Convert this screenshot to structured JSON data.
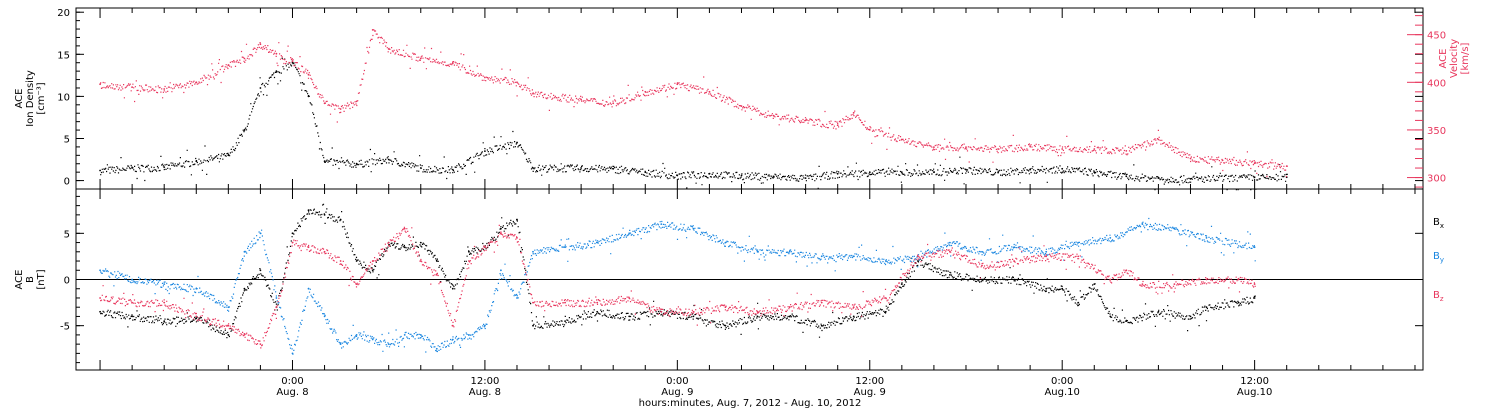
{
  "chart_data": [
    {
      "type": "scatter",
      "panel": "top",
      "left_axis": {
        "label_lines": [
          "ACE",
          "Ion Density",
          "[cm⁻³]"
        ],
        "ticks": [
          0,
          5,
          10,
          15,
          20
        ],
        "ylim": [
          -1,
          20.5
        ],
        "color": "#000000"
      },
      "right_axis": {
        "label_lines": [
          "ACE",
          "Velocity",
          "[km/s]"
        ],
        "ticks": [
          300,
          350,
          400,
          450
        ],
        "ylim": [
          288,
          478
        ],
        "color": "#e8365d"
      },
      "series": [
        {
          "axis": "left",
          "color": "#000000",
          "points": [
            [
              -12,
              1.2
            ],
            [
              -10,
              1.5
            ],
            [
              -8,
              1.6
            ],
            [
              -6,
              2.3
            ],
            [
              -4,
              3
            ],
            [
              -3,
              6
            ],
            [
              -2,
              11
            ],
            [
              -1,
              13
            ],
            [
              0,
              14
            ],
            [
              1,
              10
            ],
            [
              2,
              2.3
            ],
            [
              4,
              2
            ],
            [
              6,
              2.5
            ],
            [
              8,
              1.5
            ],
            [
              10,
              1.3
            ],
            [
              12,
              3.5
            ],
            [
              14,
              4.5
            ],
            [
              15,
              1.5
            ],
            [
              18,
              1.5
            ],
            [
              20,
              1.4
            ],
            [
              22,
              1
            ],
            [
              24,
              0.6
            ],
            [
              26,
              0.8
            ],
            [
              28,
              0.6
            ],
            [
              30,
              0.5
            ],
            [
              32,
              0.3
            ],
            [
              34,
              0.8
            ],
            [
              36,
              1
            ],
            [
              38,
              1
            ],
            [
              40,
              1
            ],
            [
              42,
              1.3
            ],
            [
              44,
              1
            ],
            [
              46,
              1.3
            ],
            [
              48,
              1.4
            ],
            [
              50,
              1
            ],
            [
              52,
              0.5
            ],
            [
              54,
              0.3
            ],
            [
              56,
              0.2
            ],
            [
              60,
              0.4
            ],
            [
              62,
              0.4
            ]
          ]
        },
        {
          "axis": "right",
          "color": "#e8365d",
          "points": [
            [
              -12,
              398
            ],
            [
              -10,
              395
            ],
            [
              -8,
              393
            ],
            [
              -6,
              400
            ],
            [
              -4,
              418
            ],
            [
              -3,
              425
            ],
            [
              -2,
              440
            ],
            [
              -1,
              430
            ],
            [
              0,
              422
            ],
            [
              1,
              408
            ],
            [
              2,
              378
            ],
            [
              3,
              372
            ],
            [
              4,
              380
            ],
            [
              5,
              455
            ],
            [
              6,
              435
            ],
            [
              8,
              425
            ],
            [
              10,
              420
            ],
            [
              12,
              405
            ],
            [
              14,
              400
            ],
            [
              15,
              388
            ],
            [
              18,
              382
            ],
            [
              20,
              378
            ],
            [
              22,
              390
            ],
            [
              24,
              398
            ],
            [
              26,
              390
            ],
            [
              28,
              375
            ],
            [
              30,
              365
            ],
            [
              32,
              360
            ],
            [
              34,
              355
            ],
            [
              35,
              368
            ],
            [
              36,
              350
            ],
            [
              38,
              340
            ],
            [
              40,
              332
            ],
            [
              42,
              332
            ],
            [
              44,
              330
            ],
            [
              46,
              333
            ],
            [
              48,
              330
            ],
            [
              50,
              330
            ],
            [
              52,
              328
            ],
            [
              54,
              340
            ],
            [
              56,
              320
            ],
            [
              58,
              318
            ],
            [
              60,
              315
            ],
            [
              62,
              312
            ]
          ]
        }
      ]
    },
    {
      "type": "scatter",
      "panel": "bottom",
      "left_axis": {
        "label_lines": [
          "ACE",
          "B",
          "[nT]"
        ],
        "ticks": [
          -5,
          0,
          5
        ],
        "ylim": [
          -9.8,
          9.8
        ]
      },
      "zero_line": true,
      "series": [
        {
          "name": "Bx",
          "label": "B",
          "subscript": "x",
          "color": "#000000",
          "points": [
            [
              -12,
              -3.5
            ],
            [
              -10,
              -4
            ],
            [
              -8,
              -4.5
            ],
            [
              -6,
              -4.2
            ],
            [
              -4,
              -6
            ],
            [
              -3,
              -1
            ],
            [
              -2,
              1
            ],
            [
              -1,
              -3
            ],
            [
              0,
              5
            ],
            [
              1,
              7.5
            ],
            [
              2,
              7
            ],
            [
              3,
              6.5
            ],
            [
              4,
              2
            ],
            [
              5,
              1
            ],
            [
              6,
              4
            ],
            [
              7,
              3.5
            ],
            [
              8,
              4
            ],
            [
              9,
              2
            ],
            [
              10,
              -1
            ],
            [
              11,
              3
            ],
            [
              12,
              3.5
            ],
            [
              13,
              5.5
            ],
            [
              14,
              6.5
            ],
            [
              15,
              -5
            ],
            [
              17,
              -4.5
            ],
            [
              19,
              -3.5
            ],
            [
              21,
              -4
            ],
            [
              23,
              -3.5
            ],
            [
              25,
              -4
            ],
            [
              27,
              -5
            ],
            [
              29,
              -4
            ],
            [
              31,
              -4
            ],
            [
              33,
              -5
            ],
            [
              35,
              -4
            ],
            [
              37,
              -3.5
            ],
            [
              38,
              -0.5
            ],
            [
              39,
              2
            ],
            [
              41,
              0.5
            ],
            [
              43,
              0
            ],
            [
              45,
              0
            ],
            [
              47,
              -1
            ],
            [
              48,
              -1
            ],
            [
              49,
              -2.5
            ],
            [
              50,
              -0.5
            ],
            [
              51,
              -4
            ],
            [
              52,
              -4.5
            ],
            [
              54,
              -3.5
            ],
            [
              56,
              -4
            ],
            [
              57,
              -3
            ],
            [
              59,
              -2.5
            ],
            [
              60,
              -2
            ]
          ]
        },
        {
          "name": "By",
          "label": "B",
          "subscript": "y",
          "color": "#1a86e0",
          "points": [
            [
              -12,
              1
            ],
            [
              -10,
              0
            ],
            [
              -8,
              -0.5
            ],
            [
              -6,
              -1
            ],
            [
              -4,
              -3
            ],
            [
              -3,
              3
            ],
            [
              -2,
              5
            ],
            [
              -1,
              -2
            ],
            [
              0,
              -8
            ],
            [
              1,
              -1
            ],
            [
              2,
              -4
            ],
            [
              3,
              -7
            ],
            [
              4,
              -6
            ],
            [
              5,
              -6.5
            ],
            [
              6,
              -7
            ],
            [
              7,
              -6
            ],
            [
              8,
              -6
            ],
            [
              9,
              -7.5
            ],
            [
              10,
              -6.5
            ],
            [
              11,
              -6
            ],
            [
              12,
              -5
            ],
            [
              13,
              1
            ],
            [
              14,
              -2
            ],
            [
              15,
              3
            ],
            [
              17,
              3.5
            ],
            [
              19,
              4
            ],
            [
              21,
              5
            ],
            [
              23,
              6
            ],
            [
              25,
              5.5
            ],
            [
              27,
              4
            ],
            [
              29,
              3
            ],
            [
              31,
              3
            ],
            [
              33,
              2.5
            ],
            [
              35,
              2.5
            ],
            [
              37,
              2
            ],
            [
              39,
              2.5
            ],
            [
              41,
              4
            ],
            [
              43,
              3
            ],
            [
              45,
              3.5
            ],
            [
              47,
              3
            ],
            [
              49,
              4
            ],
            [
              51,
              4.5
            ],
            [
              53,
              6
            ],
            [
              55,
              5.5
            ],
            [
              57,
              4.5
            ],
            [
              60,
              3.5
            ]
          ]
        },
        {
          "name": "Bz",
          "label": "B",
          "subscript": "z",
          "color": "#e8365d",
          "points": [
            [
              -12,
              -2
            ],
            [
              -10,
              -2.5
            ],
            [
              -8,
              -2.5
            ],
            [
              -6,
              -4
            ],
            [
              -4,
              -5
            ],
            [
              -3,
              -6
            ],
            [
              -2,
              -7
            ],
            [
              -1,
              -3
            ],
            [
              0,
              4
            ],
            [
              1,
              3.5
            ],
            [
              2,
              3
            ],
            [
              3,
              2
            ],
            [
              4,
              -0.5
            ],
            [
              5,
              2
            ],
            [
              6,
              4
            ],
            [
              7,
              5.5
            ],
            [
              8,
              2
            ],
            [
              9,
              0.5
            ],
            [
              10,
              -5
            ],
            [
              11,
              2
            ],
            [
              12,
              3.5
            ],
            [
              13,
              5
            ],
            [
              14,
              4.5
            ],
            [
              15,
              -2.5
            ],
            [
              17,
              -2.5
            ],
            [
              19,
              -2.5
            ],
            [
              21,
              -2
            ],
            [
              23,
              -3.5
            ],
            [
              25,
              -3.5
            ],
            [
              27,
              -3
            ],
            [
              29,
              -3.5
            ],
            [
              31,
              -3
            ],
            [
              33,
              -2.5
            ],
            [
              35,
              -3
            ],
            [
              37,
              -2
            ],
            [
              39,
              2.5
            ],
            [
              41,
              3
            ],
            [
              43,
              1.5
            ],
            [
              45,
              2
            ],
            [
              47,
              2.5
            ],
            [
              49,
              2.5
            ],
            [
              51,
              0
            ],
            [
              52,
              1
            ],
            [
              53,
              -0.5
            ],
            [
              55,
              -0.5
            ],
            [
              57,
              0
            ],
            [
              59,
              0
            ],
            [
              60,
              -0.5
            ]
          ]
        }
      ]
    }
  ],
  "x_axis": {
    "range_hours": [
      -13.5,
      70.5
    ],
    "major_ticks": [
      {
        "h": 0,
        "time": "0:00",
        "date": "Aug. 8"
      },
      {
        "h": 12,
        "time": "12:00",
        "date": "Aug. 8"
      },
      {
        "h": 24,
        "time": "0:00",
        "date": "Aug. 9"
      },
      {
        "h": 36,
        "time": "12:00",
        "date": "Aug. 9"
      },
      {
        "h": 48,
        "time": "0:00",
        "date": "Aug.10"
      },
      {
        "h": 60,
        "time": "12:00",
        "date": "Aug.10"
      }
    ],
    "minor_step_hours": 2,
    "title": "hours:minutes, Aug.  7, 2012 - Aug. 10, 2012"
  }
}
